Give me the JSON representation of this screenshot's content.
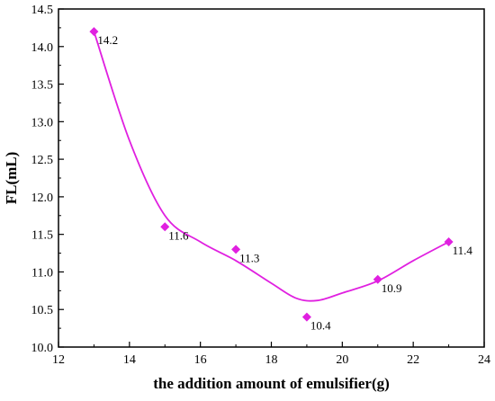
{
  "chart_data": {
    "type": "scatter",
    "xlabel": "the addition amount of emulsifier(g)",
    "ylabel": "FL(mL)",
    "xlim": [
      12,
      24
    ],
    "ylim": [
      10.0,
      14.5
    ],
    "x_ticks": [
      "12",
      "14",
      "16",
      "18",
      "20",
      "22",
      "24"
    ],
    "y_ticks": [
      "10.0",
      "10.5",
      "11.0",
      "11.5",
      "12.0",
      "12.5",
      "13.0",
      "13.5",
      "14.0",
      "14.5"
    ],
    "x": [
      13,
      15,
      17,
      19,
      21,
      23
    ],
    "y": [
      14.2,
      11.6,
      11.3,
      10.4,
      10.9,
      11.4
    ],
    "data_labels": [
      "14.2",
      "11.6",
      "11.3",
      "10.4",
      "10.9",
      "11.4"
    ],
    "fit_curve": {
      "x": [
        13,
        14,
        15,
        16,
        17,
        18,
        18.7,
        19.3,
        20,
        21,
        22,
        23
      ],
      "y": [
        14.2,
        12.75,
        11.75,
        11.4,
        11.15,
        10.85,
        10.65,
        10.62,
        10.72,
        10.88,
        11.15,
        11.4
      ]
    },
    "grid": false,
    "legend": "none",
    "colors": {
      "series": "#e020e0",
      "axis": "#000000"
    }
  }
}
